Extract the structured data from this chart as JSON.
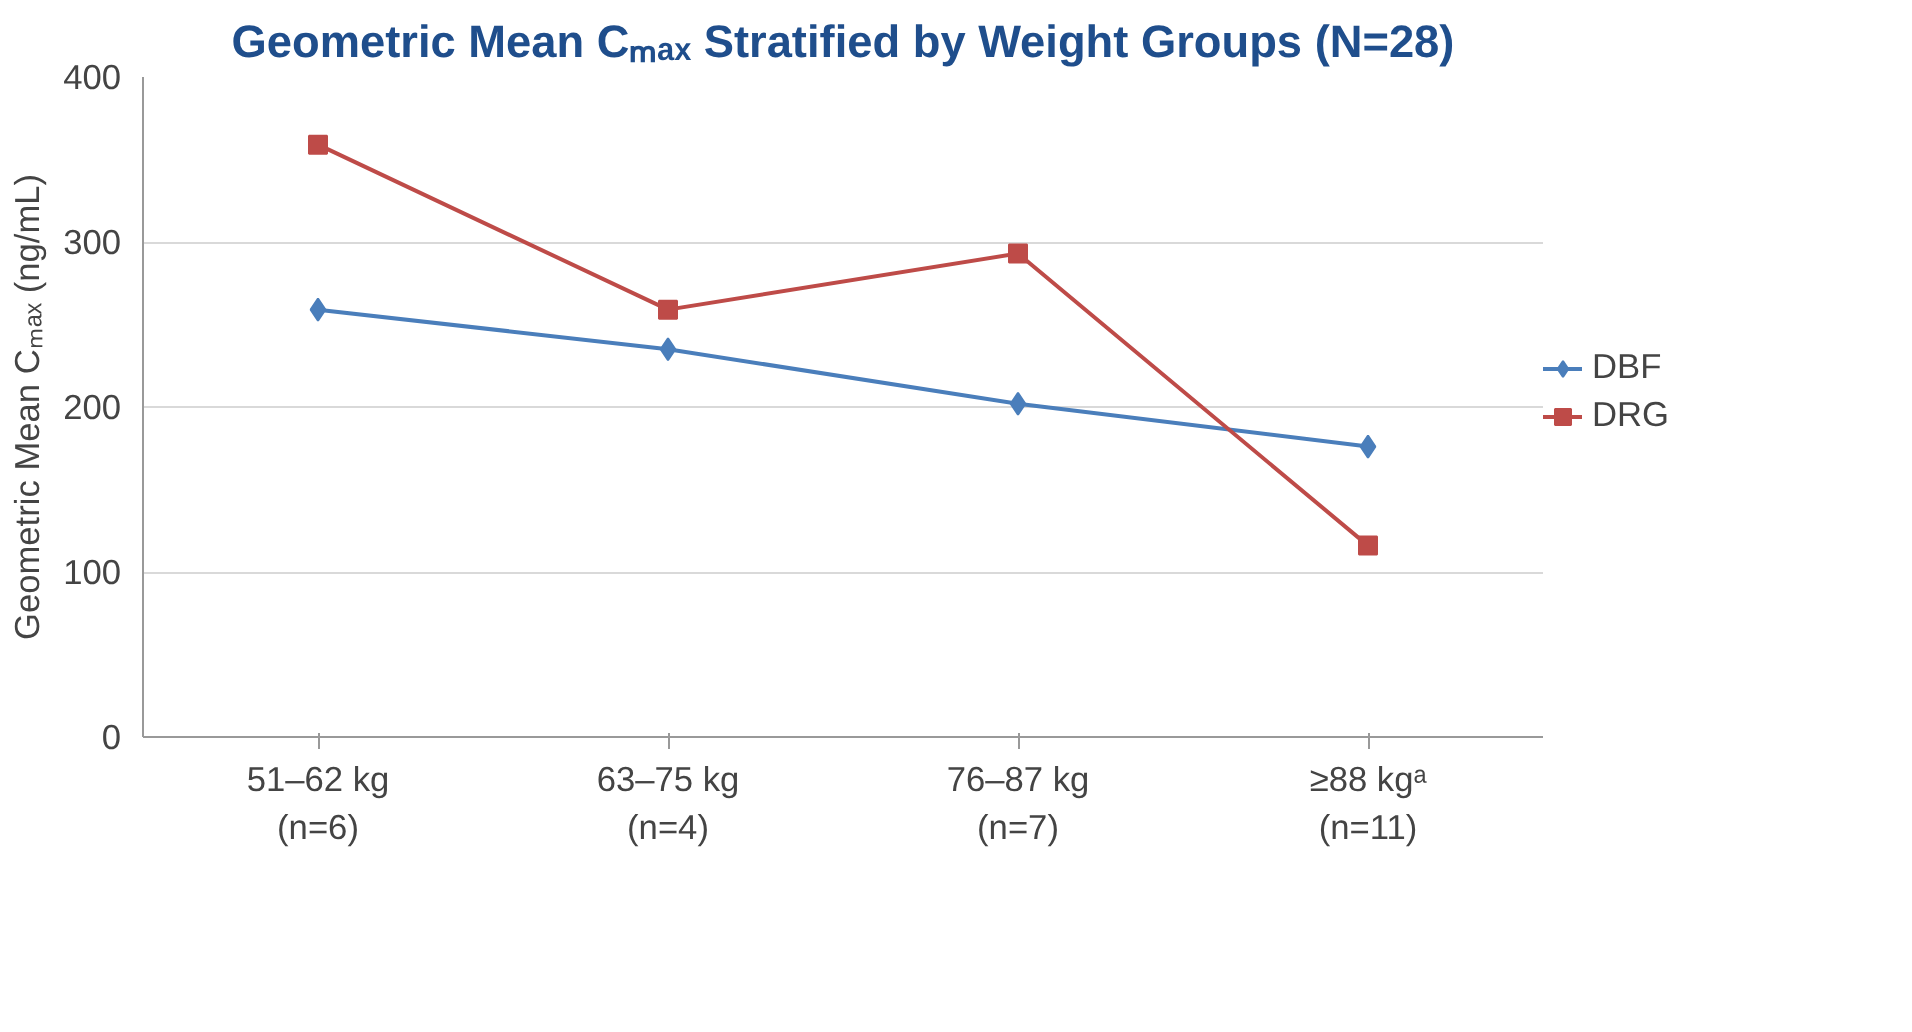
{
  "chart_data": {
    "type": "line",
    "title": "Geometric Mean Cₘₐₓ Stratified by Weight Groups (N=28)",
    "ylabel": "Geometric Mean Cₘₐₓ (ng/mL)",
    "categories": [
      "51–62 kg\n(n=6)",
      "63–75 kg\n(n=4)",
      "76–87 kg\n(n=7)",
      "≥88 kgᵃ\n(n=11)"
    ],
    "series": [
      {
        "name": "DBF",
        "color": "#4a7ebb",
        "marker": "diamond",
        "values": [
          259,
          235,
          202,
          176
        ]
      },
      {
        "name": "DRG",
        "color": "#be4b48",
        "marker": "square",
        "values": [
          359,
          259,
          293,
          116
        ]
      }
    ],
    "ylim": [
      0,
      400
    ],
    "yticks": [
      0,
      100,
      200,
      300,
      400
    ],
    "grid": "y",
    "legend": "right",
    "line_style": "solid"
  }
}
